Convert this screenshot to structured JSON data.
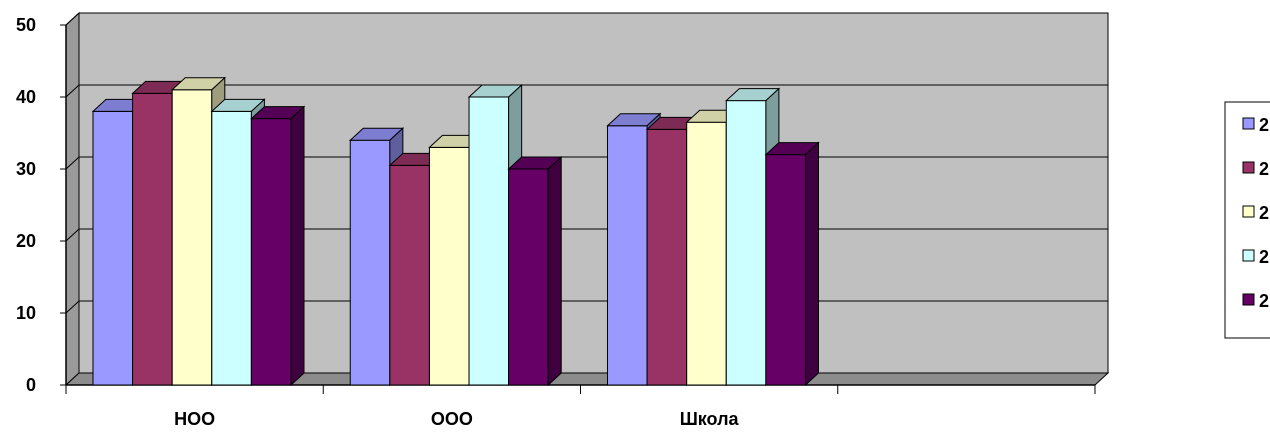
{
  "chart_data": {
    "type": "bar",
    "style": "3d-clustered-column",
    "categories": [
      "НОО",
      "ООО",
      "Школа",
      ""
    ],
    "series": [
      {
        "name": "2",
        "color": "#9999FF",
        "values": [
          38,
          34,
          36,
          null
        ]
      },
      {
        "name": "2",
        "color": "#993366",
        "values": [
          40.5,
          30.5,
          35.5,
          null
        ]
      },
      {
        "name": "2",
        "color": "#FFFFCC",
        "values": [
          41,
          33,
          36.5,
          null
        ]
      },
      {
        "name": "2",
        "color": "#CCFFFF",
        "values": [
          38,
          40,
          39.5,
          null
        ]
      },
      {
        "name": "2",
        "color": "#660066",
        "values": [
          37,
          30,
          32,
          null
        ]
      }
    ],
    "y_ticks": [
      "0",
      "10",
      "20",
      "30",
      "40",
      "50"
    ],
    "ylim": [
      0,
      50
    ],
    "grid": true,
    "wall_color": "#C0C0C0",
    "legend_position": "right"
  }
}
